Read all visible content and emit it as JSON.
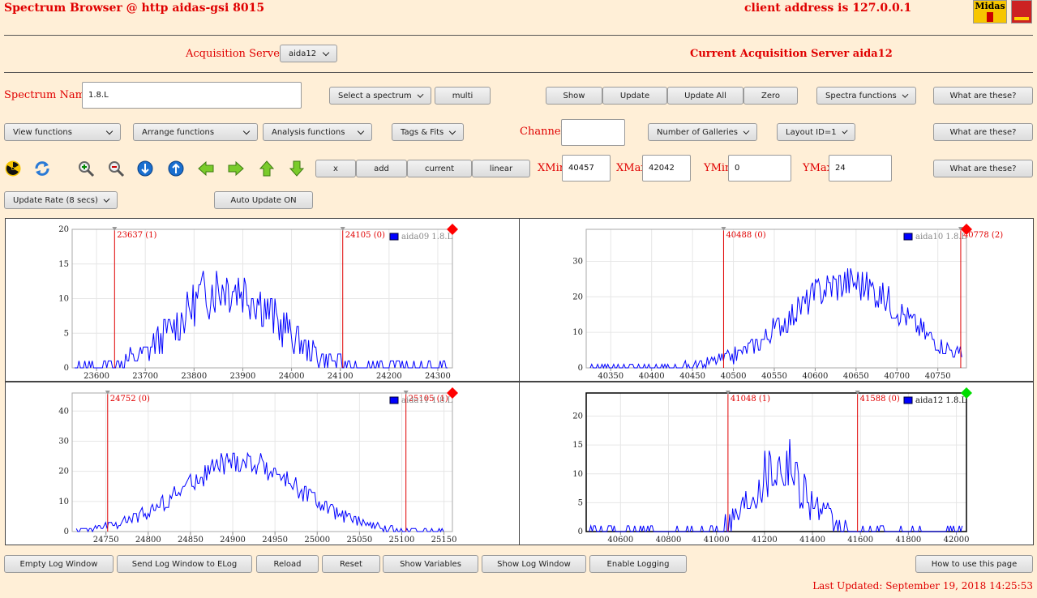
{
  "header": {
    "title": "Spectrum Browser @ http aidas-gsi 8015",
    "client_address": "client address is 127.0.0.1",
    "logo_text": "Midas"
  },
  "acq": {
    "label": "Acquisition Servers",
    "server": "aida12",
    "current": "Current Acquisition Server aida12"
  },
  "row1": {
    "spectrum_label": "Spectrum Name:",
    "spectrum_value": "1.8.L",
    "select": "Select a spectrum",
    "multi": "multi",
    "show": "Show",
    "update": "Update",
    "update_all": "Update All",
    "zero": "Zero",
    "spectra_functions": "Spectra functions",
    "what": "What are these?"
  },
  "row2": {
    "view": "View functions",
    "arrange": "Arrange functions",
    "analysis": "Analysis functions",
    "tags": "Tags & Fits",
    "channel_label": "Channel:",
    "channel_value": "",
    "galleries": "Number of Galleries",
    "layout": "Layout ID=1",
    "what": "What are these?"
  },
  "row3": {
    "icons": [
      "radiation-icon",
      "refresh-icon",
      "zoom-in-icon",
      "zoom-out-icon",
      "arrow-down-circle-icon",
      "arrow-up-circle-icon",
      "arrow-left-icon",
      "arrow-right-icon",
      "arrow-up-icon",
      "arrow-down-icon"
    ],
    "x": "x",
    "add": "add",
    "current": "current",
    "linear": "linear",
    "xmin_label": "XMin",
    "xmin": "40457",
    "xmax_label": "XMax",
    "xmax": "42042",
    "ymin_label": "YMin",
    "ymin": "0",
    "ymax_label": "YMax",
    "ymax": "24",
    "what": "What are these?"
  },
  "row4": {
    "rate": "Update Rate (8 secs)",
    "auto": "Auto Update ON"
  },
  "footer": {
    "empty_log": "Empty Log Window",
    "send_log": "Send Log Window to ELog",
    "reload": "Reload",
    "reset": "Reset",
    "show_vars": "Show Variables",
    "show_log": "Show Log Window",
    "enable_log": "Enable Logging",
    "howto": "How to use this page",
    "updated": "Last Updated: September 19, 2018 14:25:53"
  },
  "colors": {
    "accent": "#e00000",
    "series": "#0000ff",
    "status_inactive": "#ff0000",
    "status_active": "#00dd00"
  },
  "chart_data": [
    {
      "type": "line",
      "title": "",
      "legend": "aida09 1.8.L",
      "legend_active": false,
      "status": "red",
      "xlim": [
        23550,
        24330
      ],
      "ylim": [
        0,
        20
      ],
      "xticks": [
        23600,
        23700,
        23800,
        23900,
        24000,
        24100,
        24200,
        24300
      ],
      "yticks": [
        0,
        5,
        10,
        15,
        20
      ],
      "markers": [
        {
          "x": 23637,
          "label": "23637 (1)"
        },
        {
          "x": 24105,
          "label": "24105 (0)"
        }
      ],
      "series": [
        {
          "gauss": {
            "center": 23870,
            "sigma": 95,
            "peak": 12,
            "noise": 4,
            "min_x": 23555,
            "max_x": 24320
          }
        }
      ]
    },
    {
      "type": "line",
      "title": "",
      "legend": "aida10 1.8.L",
      "legend_active": false,
      "status": "red",
      "xlim": [
        40320,
        40785
      ],
      "ylim": [
        0,
        39
      ],
      "xticks": [
        40350,
        40400,
        40450,
        40500,
        40550,
        40600,
        40650,
        40700,
        40750
      ],
      "yticks": [
        0,
        10,
        20,
        30
      ],
      "markers": [
        {
          "x": 40488,
          "label": "40488 (0)"
        },
        {
          "x": 40778,
          "label": "40778 (2)"
        }
      ],
      "series": [
        {
          "gauss": {
            "center": 40640,
            "sigma": 70,
            "peak": 24,
            "noise": 5,
            "min_x": 40325,
            "max_x": 40780
          }
        }
      ]
    },
    {
      "type": "line",
      "title": "",
      "legend": "aida11 1.8.L",
      "legend_active": false,
      "status": "red",
      "xlim": [
        24710,
        25160
      ],
      "ylim": [
        0,
        46
      ],
      "xticks": [
        24750,
        24800,
        24850,
        24900,
        24950,
        25000,
        25050,
        25100,
        25150
      ],
      "yticks": [
        0,
        10,
        20,
        30,
        40
      ],
      "markers": [
        {
          "x": 24752,
          "label": "24752 (0)"
        },
        {
          "x": 25105,
          "label": "25105 (1)"
        }
      ],
      "series": [
        {
          "gauss": {
            "center": 24910,
            "sigma": 70,
            "peak": 23,
            "noise": 4,
            "min_x": 24715,
            "max_x": 25150
          }
        }
      ]
    },
    {
      "type": "line",
      "title": "",
      "legend": "aida12 1.8.L",
      "legend_active": true,
      "status": "green",
      "xlim": [
        40457,
        42042
      ],
      "ylim": [
        0,
        24
      ],
      "xticks": [
        40600,
        40800,
        41000,
        41200,
        41400,
        41600,
        41800,
        42000
      ],
      "yticks": [
        0,
        5,
        10,
        15,
        20
      ],
      "markers": [
        {
          "x": 41048,
          "label": "41048 (1)"
        },
        {
          "x": 41588,
          "label": "41588 (0)"
        }
      ],
      "series": [
        {
          "gauss": {
            "center": 41260,
            "sigma": 110,
            "peak": 12,
            "noise": 5,
            "min_x": 40470,
            "max_x": 42030
          }
        }
      ]
    }
  ]
}
